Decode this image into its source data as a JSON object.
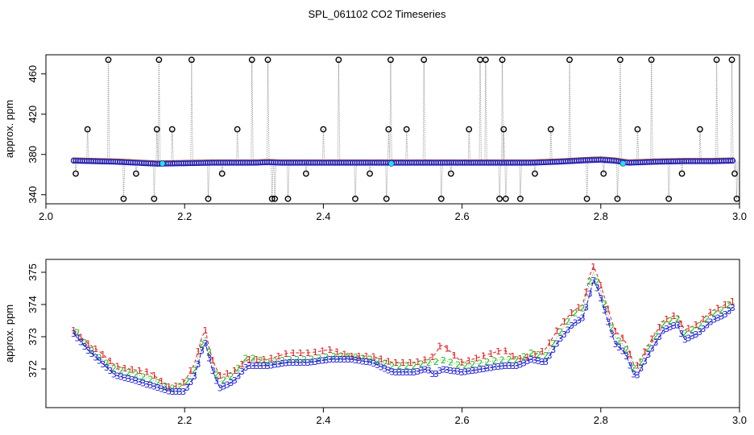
{
  "title": "SPL_061102  CO2 Timeseries",
  "colors": {
    "s1": "#e8141a",
    "s2": "#22bb22",
    "s3": "#1a1ad6",
    "cyan": "#27e0e0",
    "outlier": "#000000",
    "drop": "#888888"
  },
  "chart_data": [
    {
      "type": "scatter",
      "title": "SPL_061102  CO2 Timeseries",
      "xlabel": "",
      "ylabel": "approx. ppm",
      "xlim": [
        2.0,
        3.0
      ],
      "ylim": [
        331,
        479
      ],
      "xticks": [
        2.0,
        2.2,
        2.4,
        2.6,
        2.8,
        3.0
      ],
      "xtick_labels": [
        "2.0",
        "2.2",
        "2.4",
        "2.6",
        "2.8",
        "3.0"
      ],
      "yticks": [
        340,
        380,
        420,
        460
      ],
      "ytick_labels": [
        "340",
        "380",
        "420",
        "460"
      ],
      "baseline": {
        "x": [
          2.04,
          2.1,
          2.16,
          2.2,
          2.24,
          2.3,
          2.32,
          2.34,
          2.4,
          2.46,
          2.5,
          2.56,
          2.62,
          2.66,
          2.7,
          2.74,
          2.78,
          2.8,
          2.82,
          2.84,
          2.88,
          2.92,
          2.96,
          2.99
        ],
        "y": [
          374,
          373,
          371,
          371.5,
          372,
          372,
          372.5,
          372,
          372,
          372,
          372,
          372,
          372,
          372,
          372,
          373,
          374.5,
          375,
          374,
          372,
          373,
          373.5,
          373.5,
          374
        ]
      },
      "outliers": {
        "x": [
          2.043,
          2.06,
          2.09,
          2.112,
          2.13,
          2.156,
          2.16,
          2.163,
          2.182,
          2.21,
          2.234,
          2.254,
          2.276,
          2.297,
          2.32,
          2.326,
          2.33,
          2.349,
          2.375,
          2.4,
          2.422,
          2.446,
          2.467,
          2.491,
          2.494,
          2.497,
          2.52,
          2.545,
          2.57,
          2.584,
          2.61,
          2.626,
          2.634,
          2.654,
          2.658,
          2.66,
          2.663,
          2.684,
          2.705,
          2.728,
          2.755,
          2.78,
          2.804,
          2.824,
          2.828,
          2.853,
          2.873,
          2.898,
          2.917,
          2.943,
          2.967,
          2.989,
          2.993,
          2.996
        ],
        "y": [
          361,
          405,
          474,
          336,
          361,
          336,
          405,
          474,
          405,
          474,
          336,
          361,
          405,
          474,
          474,
          336,
          336,
          336,
          361,
          405,
          474,
          336,
          361,
          336,
          405,
          474,
          405,
          474,
          336,
          361,
          405,
          474,
          474,
          336,
          474,
          405,
          336,
          336,
          361,
          405,
          474,
          336,
          361,
          336,
          474,
          405,
          474,
          336,
          361,
          405,
          474,
          474,
          361,
          336
        ]
      },
      "cyan_points": {
        "x": [
          2.168,
          2.498,
          2.832
        ],
        "y": [
          371,
          371,
          371
        ]
      }
    },
    {
      "type": "line",
      "title": "",
      "xlabel": "",
      "ylabel": "approx. ppm",
      "xlim": [
        2.0,
        3.0
      ],
      "ylim": [
        370.8,
        375.4
      ],
      "xticks": [
        2.2,
        2.4,
        2.6,
        2.8,
        3.0
      ],
      "xtick_labels": [
        "2.2",
        "2.4",
        "2.6",
        "2.8",
        "3.0"
      ],
      "yticks": [
        372,
        373,
        374,
        375
      ],
      "ytick_labels": [
        "372",
        "373",
        "374",
        "375"
      ],
      "markers": [
        "1",
        "2",
        "3"
      ],
      "series": [
        {
          "name": "1",
          "x": [
            2.04,
            2.06,
            2.08,
            2.1,
            2.12,
            2.15,
            2.18,
            2.2,
            2.215,
            2.225,
            2.23,
            2.238,
            2.25,
            2.27,
            2.29,
            2.32,
            2.35,
            2.38,
            2.41,
            2.44,
            2.47,
            2.5,
            2.53,
            2.55,
            2.56,
            2.57,
            2.6,
            2.63,
            2.66,
            2.68,
            2.7,
            2.72,
            2.74,
            2.76,
            2.775,
            2.785,
            2.79,
            2.8,
            2.82,
            2.835,
            2.85,
            2.87,
            2.89,
            2.9,
            2.91,
            2.92,
            2.94,
            2.96,
            2.98,
            2.99
          ],
          "y": [
            373.2,
            372.8,
            372.5,
            372.1,
            372.0,
            371.9,
            371.4,
            371.6,
            372.2,
            373.0,
            373.2,
            372.4,
            371.8,
            371.9,
            372.3,
            372.3,
            372.5,
            372.5,
            372.6,
            372.4,
            372.4,
            372.2,
            372.2,
            372.3,
            372.4,
            372.8,
            372.2,
            372.4,
            372.6,
            372.3,
            372.4,
            372.6,
            373.3,
            373.8,
            374.0,
            375.0,
            375.2,
            374.6,
            373.2,
            372.9,
            372.0,
            372.8,
            373.5,
            373.6,
            373.7,
            373.2,
            373.4,
            373.8,
            374.0,
            374.1
          ]
        },
        {
          "name": "2",
          "x": [
            2.04,
            2.06,
            2.08,
            2.1,
            2.12,
            2.15,
            2.18,
            2.2,
            2.215,
            2.225,
            2.23,
            2.238,
            2.25,
            2.27,
            2.29,
            2.32,
            2.35,
            2.38,
            2.41,
            2.44,
            2.47,
            2.5,
            2.53,
            2.55,
            2.56,
            2.57,
            2.6,
            2.63,
            2.66,
            2.68,
            2.7,
            2.72,
            2.74,
            2.76,
            2.775,
            2.785,
            2.79,
            2.8,
            2.82,
            2.835,
            2.85,
            2.87,
            2.89,
            2.9,
            2.91,
            2.92,
            2.94,
            2.96,
            2.98,
            2.99
          ],
          "y": [
            373.3,
            372.7,
            372.3,
            372.0,
            371.9,
            371.7,
            371.4,
            371.5,
            372.0,
            372.8,
            373.0,
            372.3,
            371.6,
            371.8,
            372.4,
            372.2,
            372.3,
            372.3,
            372.4,
            372.4,
            372.3,
            372.1,
            372.1,
            372.2,
            372.2,
            372.3,
            372.1,
            372.2,
            372.3,
            372.3,
            372.5,
            372.4,
            373.1,
            373.7,
            373.9,
            374.8,
            375.0,
            374.4,
            373.0,
            372.7,
            371.9,
            372.7,
            373.4,
            373.5,
            373.6,
            373.1,
            373.3,
            373.7,
            373.9,
            374.1
          ]
        },
        {
          "name": "3",
          "x": [
            2.04,
            2.06,
            2.08,
            2.1,
            2.12,
            2.15,
            2.18,
            2.2,
            2.215,
            2.225,
            2.23,
            2.238,
            2.25,
            2.27,
            2.29,
            2.32,
            2.35,
            2.38,
            2.41,
            2.44,
            2.47,
            2.5,
            2.53,
            2.55,
            2.56,
            2.57,
            2.6,
            2.63,
            2.66,
            2.68,
            2.7,
            2.72,
            2.74,
            2.76,
            2.775,
            2.785,
            2.79,
            2.8,
            2.82,
            2.835,
            2.85,
            2.87,
            2.89,
            2.9,
            2.91,
            2.92,
            2.94,
            2.96,
            2.98,
            2.99
          ],
          "y": [
            373.1,
            372.6,
            372.2,
            371.8,
            371.7,
            371.5,
            371.3,
            371.3,
            371.8,
            372.6,
            372.8,
            372.1,
            371.4,
            371.6,
            372.1,
            372.1,
            372.2,
            372.2,
            372.3,
            372.3,
            372.2,
            371.9,
            371.9,
            372.0,
            371.8,
            372.0,
            371.9,
            372.0,
            372.1,
            372.1,
            372.3,
            372.2,
            372.9,
            373.4,
            373.6,
            374.4,
            374.8,
            374.2,
            372.8,
            372.5,
            371.7,
            372.5,
            373.2,
            373.3,
            373.4,
            372.9,
            373.1,
            373.5,
            373.7,
            373.9
          ]
        }
      ]
    }
  ]
}
